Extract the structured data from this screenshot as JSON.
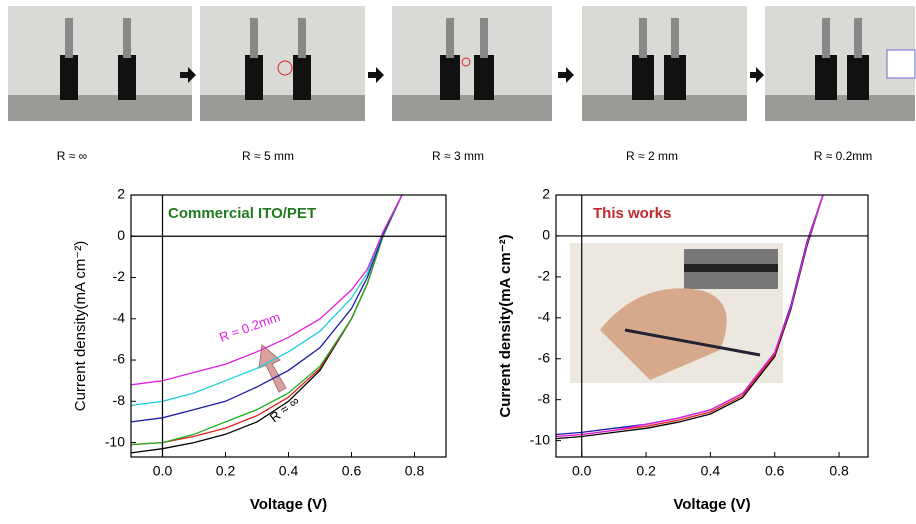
{
  "captions": [
    "R ≈ ∞",
    "R ≈ 5 mm",
    "R ≈ 3 mm",
    "R ≈ 2 mm",
    "R ≈ 0.2mm"
  ],
  "chart_data": [
    {
      "type": "line",
      "title": "Commercial ITO/PET",
      "title_color": "#1f7a1f",
      "x_label": "Voltage (V)",
      "y_label": "Current density(mA cm⁻²)",
      "annotations": [
        "R ≈ 0.2mm",
        "R ≈ ∞"
      ],
      "xlim": [
        -0.1,
        0.9
      ],
      "ylim": [
        -10.7,
        2
      ],
      "xticks": [
        {
          "value": 0,
          "label": "0.0"
        },
        0.2,
        0.4,
        0.6,
        0.8
      ],
      "yticks": [
        -10,
        -8,
        -6,
        -4,
        -2,
        0,
        2
      ],
      "x": [
        -0.1,
        0,
        0.1,
        0.2,
        0.3,
        0.4,
        0.5,
        0.6,
        0.65,
        0.7,
        0.76
      ],
      "series": [
        {
          "color": "#000000",
          "values": [
            -10.5,
            -10.3,
            -10.0,
            -9.6,
            -9.0,
            -8.0,
            -6.5,
            -4.0,
            -2.3,
            0.0,
            2
          ]
        },
        {
          "color": "#e0201c",
          "values": [
            -10.1,
            -10.0,
            -9.7,
            -9.3,
            -8.7,
            -7.8,
            -6.4,
            -4.0,
            -2.3,
            0.0,
            2
          ]
        },
        {
          "color": "#22b022",
          "values": [
            -10.1,
            -10.0,
            -9.6,
            -9.0,
            -8.4,
            -7.6,
            -6.3,
            -4.0,
            -2.3,
            0.0,
            2
          ]
        },
        {
          "color": "#1a1aa8",
          "values": [
            -9.0,
            -8.8,
            -8.4,
            -8.0,
            -7.3,
            -6.5,
            -5.4,
            -3.5,
            -2.0,
            0.1,
            2
          ]
        },
        {
          "color": "#1fd0d8",
          "values": [
            -8.2,
            -8.0,
            -7.6,
            -7.0,
            -6.4,
            -5.6,
            -4.6,
            -3.0,
            -1.8,
            0.2,
            2
          ]
        },
        {
          "color": "#e020e0",
          "values": [
            -7.2,
            -7.0,
            -6.6,
            -6.2,
            -5.6,
            -4.9,
            -4.0,
            -2.6,
            -1.6,
            0.2,
            2
          ]
        }
      ]
    },
    {
      "type": "line",
      "title": "This works",
      "title_color": "#c0282d",
      "x_label": "Voltage (V)",
      "y_label": "Current density(mA cm⁻²)",
      "annotations": [],
      "xlim": [
        -0.08,
        0.89
      ],
      "ylim": [
        -10.8,
        2
      ],
      "xticks": [
        {
          "value": 0,
          "label": "0.0"
        },
        0.2,
        0.4,
        0.6,
        0.8
      ],
      "yticks": [
        -10,
        -8,
        -6,
        -4,
        -2,
        0,
        2
      ],
      "x": [
        -0.08,
        0,
        0.1,
        0.2,
        0.3,
        0.4,
        0.5,
        0.6,
        0.65,
        0.7,
        0.75
      ],
      "series": [
        {
          "color": "#000000",
          "values": [
            -9.9,
            -9.8,
            -9.6,
            -9.4,
            -9.1,
            -8.7,
            -7.9,
            -5.9,
            -3.6,
            -0.5,
            2
          ]
        },
        {
          "color": "#e0201c",
          "values": [
            -9.8,
            -9.7,
            -9.5,
            -9.3,
            -9.0,
            -8.6,
            -7.8,
            -5.8,
            -3.5,
            -0.4,
            2
          ]
        },
        {
          "color": "#1a1aa8",
          "values": [
            -9.7,
            -9.6,
            -9.4,
            -9.2,
            -8.9,
            -8.5,
            -7.7,
            -5.7,
            -3.4,
            -0.3,
            2
          ]
        },
        {
          "color": "#e020e0",
          "values": [
            -9.8,
            -9.7,
            -9.5,
            -9.2,
            -8.9,
            -8.5,
            -7.7,
            -5.7,
            -3.5,
            -0.4,
            2
          ]
        }
      ]
    }
  ]
}
